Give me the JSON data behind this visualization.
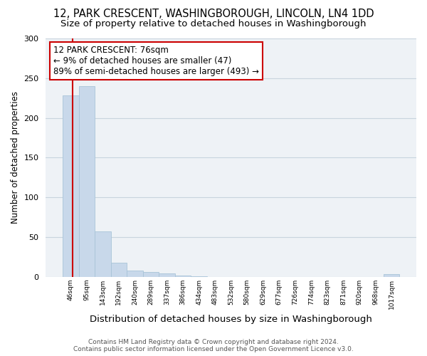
{
  "title": "12, PARK CRESCENT, WASHINGBOROUGH, LINCOLN, LN4 1DD",
  "subtitle": "Size of property relative to detached houses in Washingborough",
  "xlabel": "Distribution of detached houses by size in Washingborough",
  "ylabel": "Number of detached properties",
  "bin_labels": [
    "46sqm",
    "95sqm",
    "143sqm",
    "192sqm",
    "240sqm",
    "289sqm",
    "337sqm",
    "386sqm",
    "434sqm",
    "483sqm",
    "532sqm",
    "580sqm",
    "629sqm",
    "677sqm",
    "726sqm",
    "774sqm",
    "823sqm",
    "871sqm",
    "920sqm",
    "968sqm",
    "1017sqm"
  ],
  "bar_values": [
    228,
    240,
    57,
    18,
    8,
    6,
    4,
    2,
    1,
    0,
    0,
    0,
    0,
    0,
    0,
    0,
    0,
    0,
    0,
    0,
    3
  ],
  "bar_color": "#c8d8ea",
  "bar_edgecolor": "#a8c4d8",
  "red_line_color": "#cc0000",
  "box_edgecolor": "#cc0000",
  "ylim": [
    0,
    300
  ],
  "yticks": [
    0,
    50,
    100,
    150,
    200,
    250,
    300
  ],
  "grid_color": "#c8d4de",
  "background_color": "#eef2f6",
  "annotation_text_line1": "12 PARK CRESCENT: 76sqm",
  "annotation_text_line2": "← 9% of detached houses are smaller (47)",
  "annotation_text_line3": "89% of semi-detached houses are larger (493) →",
  "footer_text": "Contains HM Land Registry data © Crown copyright and database right 2024.\nContains public sector information licensed under the Open Government Licence v3.0.",
  "title_fontsize": 10.5,
  "subtitle_fontsize": 9.5,
  "xlabel_fontsize": 9.5,
  "ylabel_fontsize": 8.5,
  "annotation_fontsize": 8.5,
  "footer_fontsize": 6.5
}
